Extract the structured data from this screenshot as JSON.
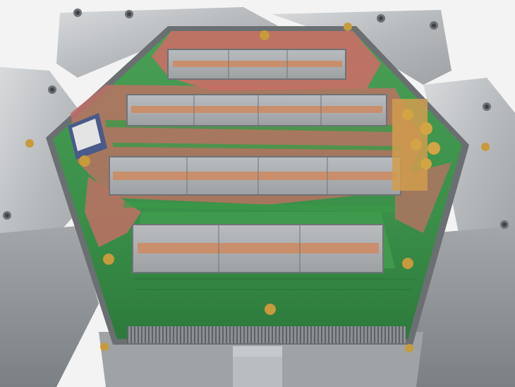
{
  "photo": {
    "subject": "",
    "colors": {
      "background": "#f4f4f4",
      "aluminum_light": "#c9ccce",
      "aluminum_mid": "#a9adb0",
      "aluminum_dark": "#7f8488",
      "pcb_green": "#3f9a4e",
      "pcb_green_dark": "#2f7d3e",
      "pcb_pink": "#c96e66",
      "sensor_silver": "#aeb1b3",
      "sensor_edge": "#6f7376",
      "copper_strip": "#c98f6d",
      "brass": "#c79a3c",
      "gold_connector": "#d3a444"
    }
  }
}
